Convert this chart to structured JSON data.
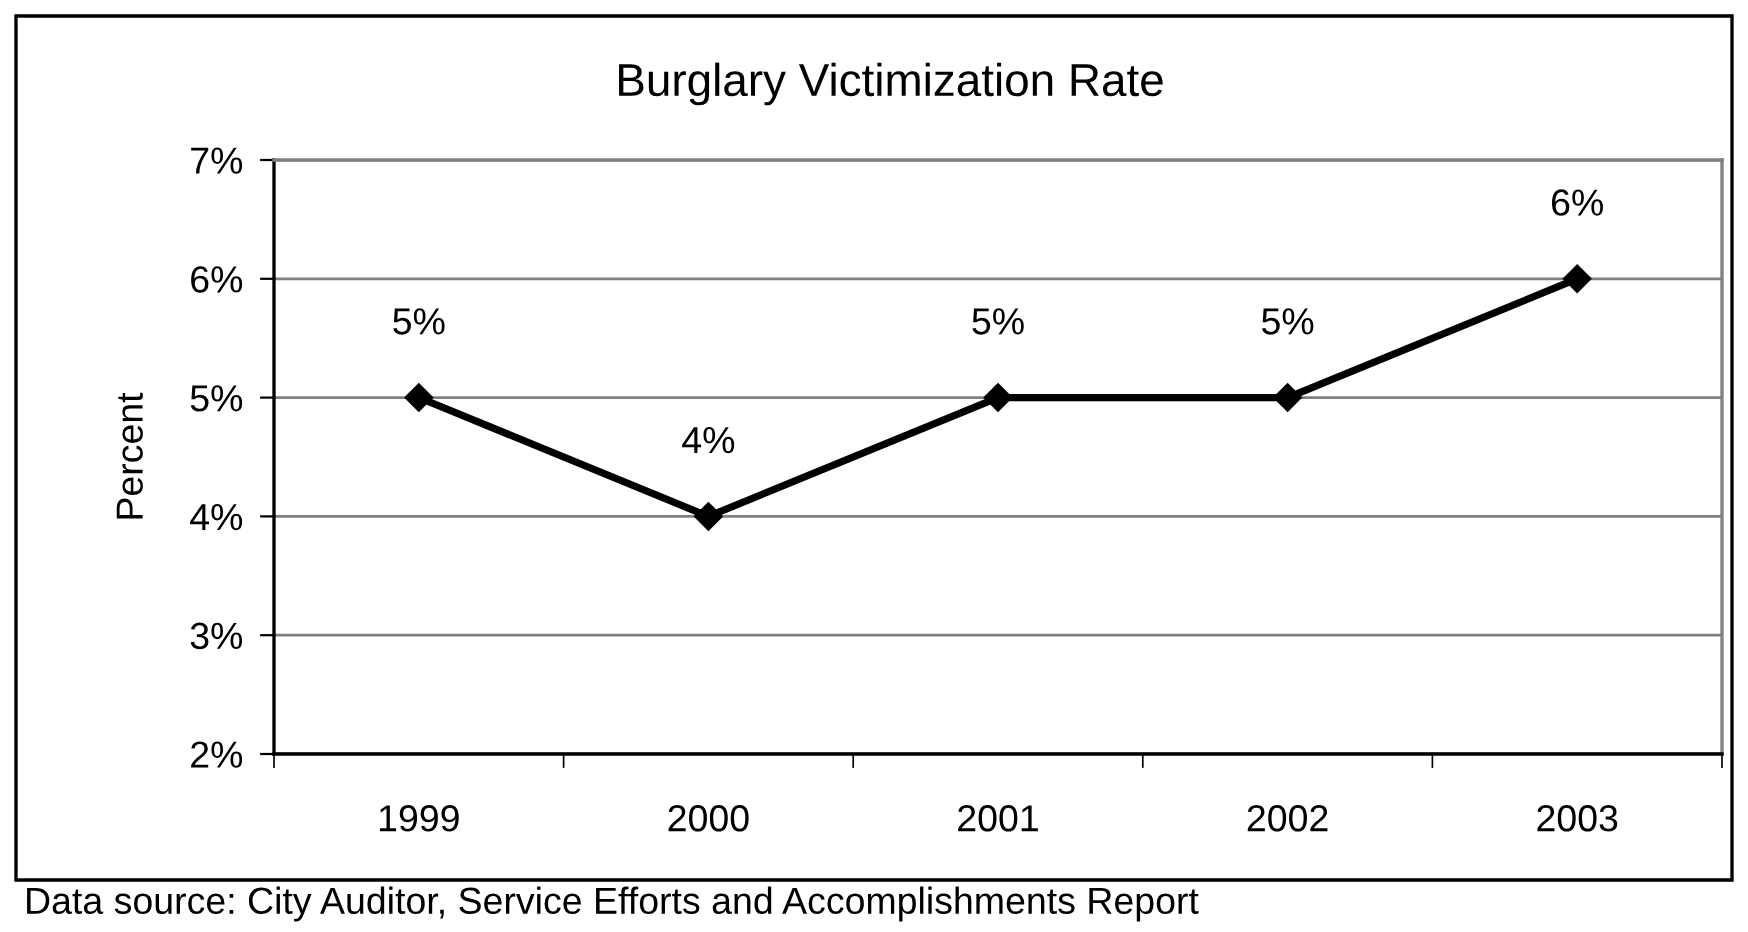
{
  "chart_data": {
    "type": "line",
    "title": "Burglary Victimization Rate",
    "ylabel": "Percent",
    "categories": [
      "1999",
      "2000",
      "2001",
      "2002",
      "2003"
    ],
    "series": [
      {
        "color": "#000000",
        "values": [
          5,
          4,
          5,
          5,
          6
        ],
        "value_labels": [
          "5%",
          "4%",
          "5%",
          "5%",
          "6%"
        ]
      }
    ],
    "ylim": [
      2,
      7
    ],
    "yticks": [
      {
        "value": 2,
        "label": "2%"
      },
      {
        "value": 3,
        "label": "3%"
      },
      {
        "value": 4,
        "label": "4%"
      },
      {
        "value": 5,
        "label": "5%"
      },
      {
        "value": 6,
        "label": "6%"
      },
      {
        "value": 7,
        "label": "7%"
      }
    ],
    "grid": "y",
    "marker": "diamond",
    "line_style": "solid",
    "annotations": [
      "Data source: City Auditor, Service Efforts and Accomplishments Report"
    ]
  }
}
